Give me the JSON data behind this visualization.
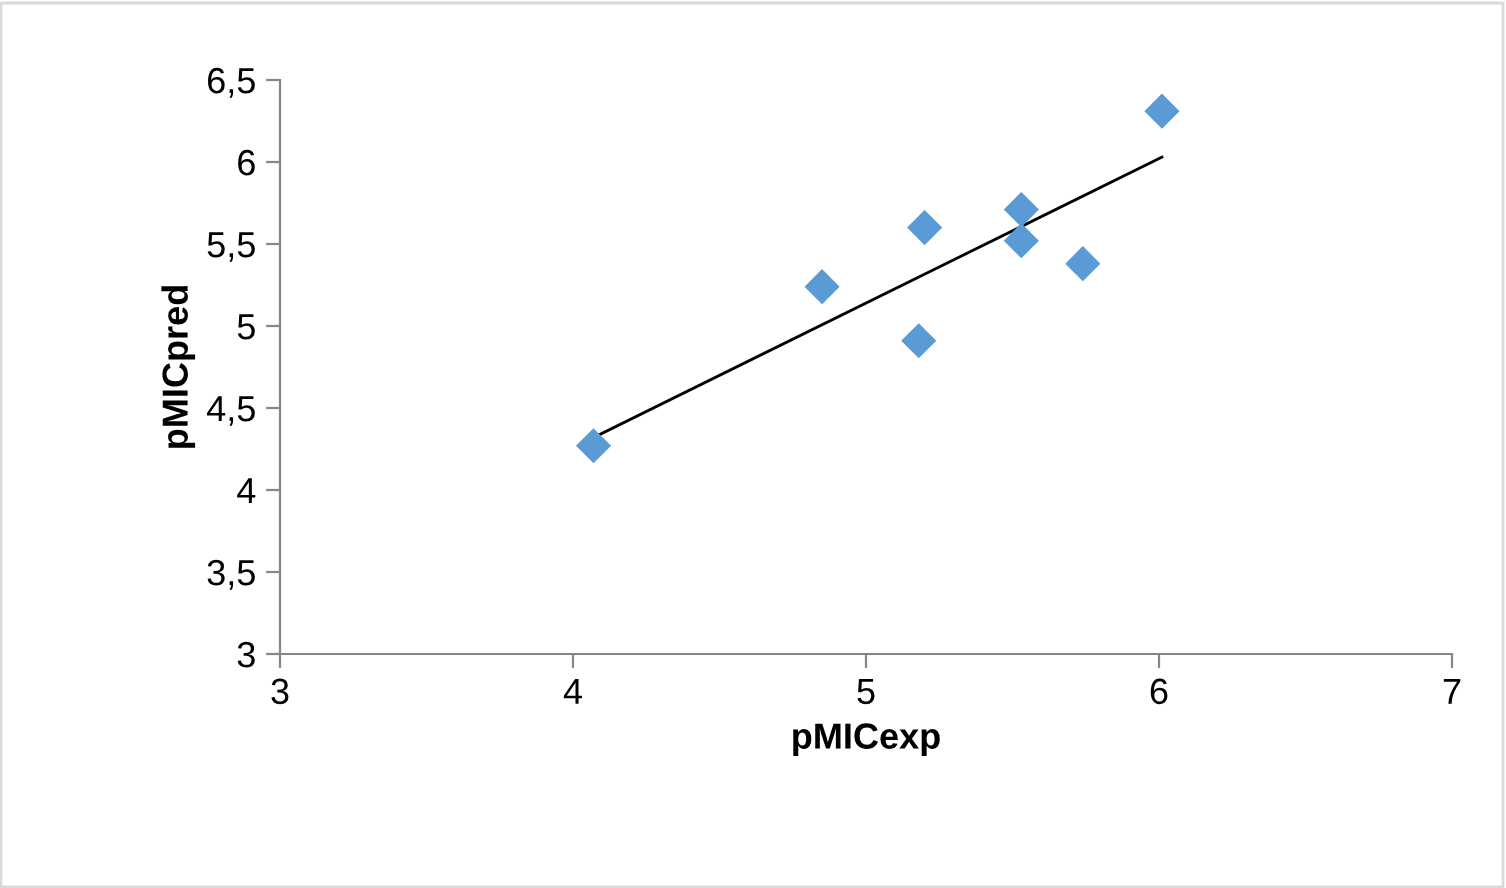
{
  "chart_data": {
    "type": "scatter",
    "xlabel": "pMICexp",
    "ylabel": "pMICpred",
    "series": [
      {
        "color": "#5b9bd5",
        "marker": "diamond",
        "x": [
          4.07,
          4.85,
          5.2,
          5.18,
          5.53,
          5.53,
          5.74,
          6.01
        ],
        "values": [
          4.27,
          5.24,
          5.6,
          4.91,
          5.71,
          5.52,
          5.38,
          6.31
        ]
      },
      {
        "type": "line",
        "color": "#000000",
        "x": [
          4.07,
          6.01
        ],
        "values": [
          4.32,
          6.03
        ]
      }
    ],
    "xlim": [
      3,
      7
    ],
    "xticks": [
      3,
      4,
      5,
      6,
      7
    ],
    "ylim": [
      3,
      6.5
    ],
    "yticks": [
      {
        "value": 3,
        "label": "3"
      },
      {
        "value": 3.5,
        "label": "3,5"
      },
      {
        "value": 4,
        "label": "4"
      },
      {
        "value": 4.5,
        "label": "4,5"
      },
      {
        "value": 5,
        "label": "5"
      },
      {
        "value": 5.5,
        "label": "5,5"
      },
      {
        "value": 6,
        "label": "6"
      },
      {
        "value": 6.5,
        "label": "6,5"
      }
    ],
    "grid": false,
    "legend": false
  }
}
